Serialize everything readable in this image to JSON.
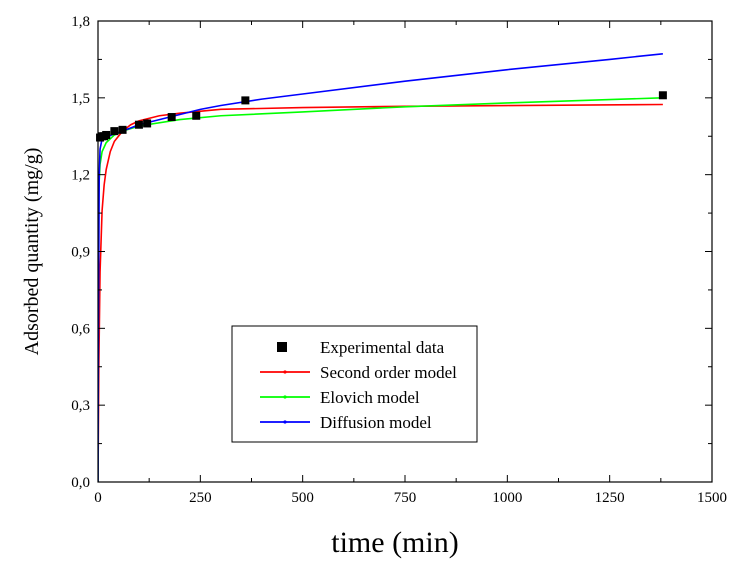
{
  "chart_data": {
    "type": "scatter",
    "xlabel": "time (min)",
    "ylabel": "Adsorbed quantity (mg/g)",
    "xlim": [
      0,
      1500
    ],
    "ylim": [
      0,
      1.8
    ],
    "xticks": [
      0,
      250,
      500,
      750,
      1000,
      1250,
      1500
    ],
    "xtick_labels": [
      "0",
      "250",
      "500",
      "750",
      "1000",
      "1250",
      "1500"
    ],
    "yticks": [
      0,
      0.3,
      0.6,
      0.9,
      1.2,
      1.5,
      1.8
    ],
    "ytick_labels": [
      "0,0",
      "0,3",
      "0,6",
      "0,9",
      "1,2",
      "1,5",
      "1,8"
    ],
    "grid": false,
    "legend_position": "bottom-center",
    "series": [
      {
        "name": "Experimental data",
        "kind": "markers",
        "color": "#000000",
        "x": [
          5,
          10,
          15,
          20,
          40,
          60,
          100,
          120,
          180,
          240,
          360,
          1380
        ],
        "y": [
          1.345,
          1.35,
          1.35,
          1.355,
          1.37,
          1.375,
          1.395,
          1.4,
          1.425,
          1.43,
          1.49,
          1.51
        ]
      },
      {
        "name": "Second order model",
        "kind": "line",
        "color": "#ff0000",
        "x": [
          0,
          2,
          5,
          10,
          15,
          20,
          30,
          40,
          60,
          80,
          100,
          150,
          200,
          300,
          500,
          750,
          1000,
          1380
        ],
        "y": [
          0,
          0.45,
          0.82,
          1.06,
          1.16,
          1.22,
          1.29,
          1.33,
          1.37,
          1.395,
          1.41,
          1.43,
          1.44,
          1.455,
          1.462,
          1.467,
          1.47,
          1.474
        ]
      },
      {
        "name": "Elovich model",
        "kind": "line",
        "color": "#00ff00",
        "x": [
          0,
          1,
          2,
          5,
          10,
          20,
          40,
          60,
          100,
          200,
          300,
          500,
          750,
          1000,
          1380
        ],
        "y": [
          0,
          1.05,
          1.15,
          1.24,
          1.29,
          1.325,
          1.355,
          1.37,
          1.39,
          1.415,
          1.43,
          1.445,
          1.465,
          1.48,
          1.5
        ]
      },
      {
        "name": "Diffusion model",
        "kind": "line",
        "color": "#0000ff",
        "x": [
          0,
          1,
          3,
          5,
          10,
          20,
          40,
          60,
          100,
          150,
          200,
          250,
          300,
          400,
          500,
          750,
          1000,
          1250,
          1380
        ],
        "y": [
          0,
          0.6,
          1.2,
          1.3,
          1.34,
          1.345,
          1.36,
          1.37,
          1.395,
          1.415,
          1.435,
          1.455,
          1.47,
          1.495,
          1.515,
          1.565,
          1.61,
          1.65,
          1.672
        ]
      }
    ]
  }
}
